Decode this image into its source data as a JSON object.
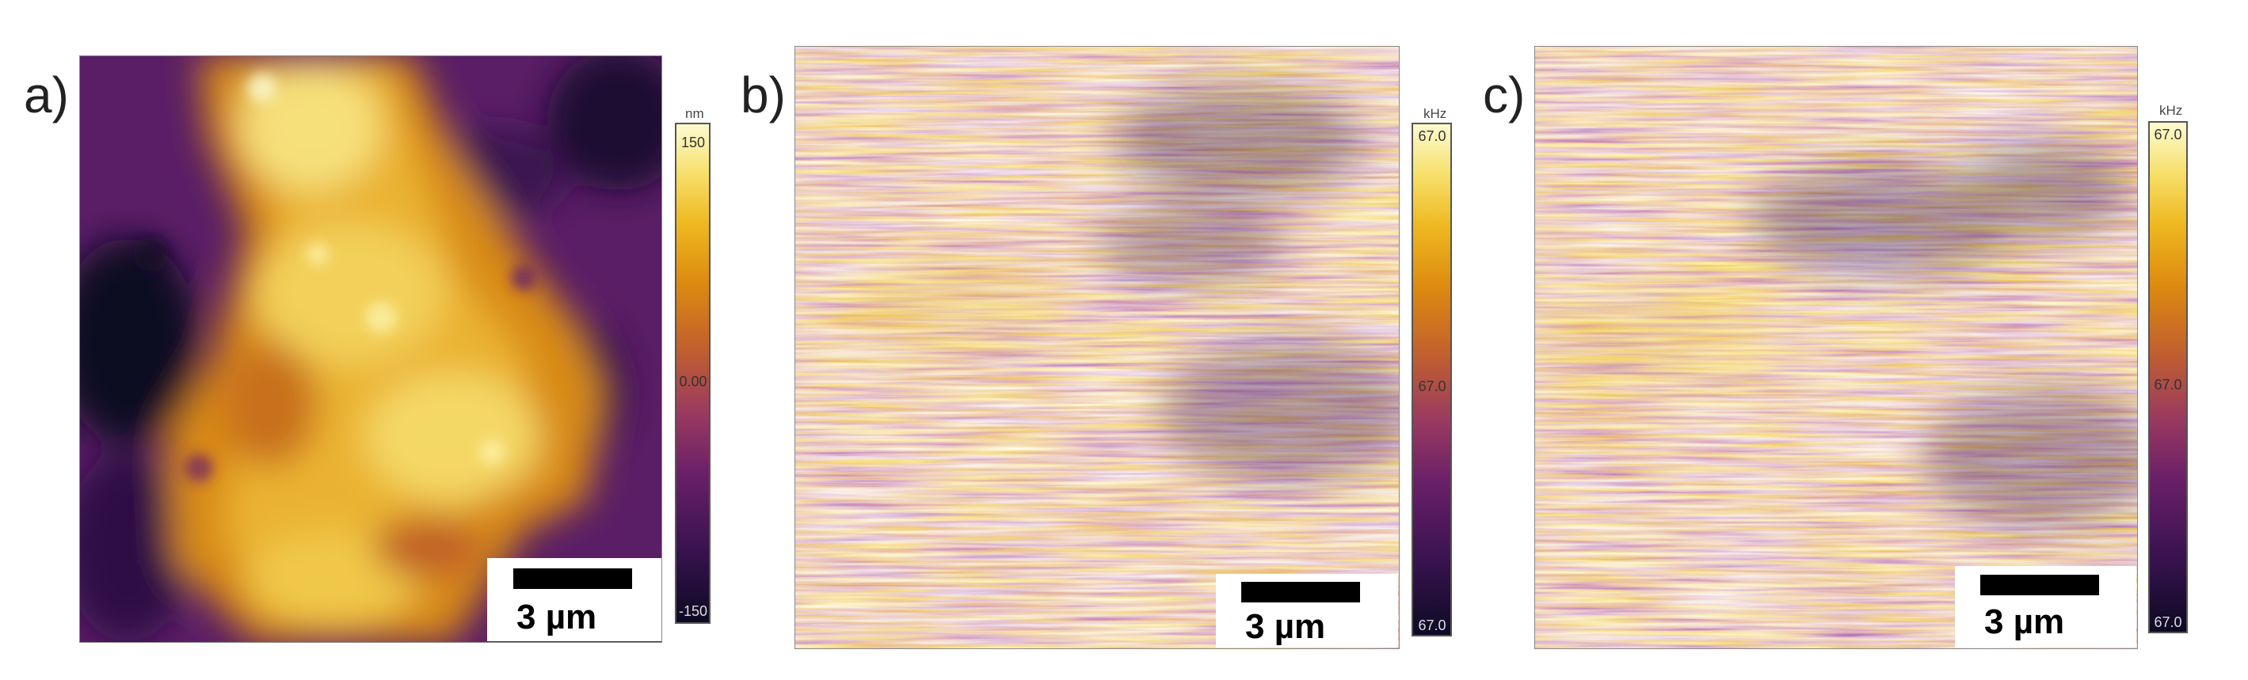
{
  "panels": [
    {
      "label": "a)",
      "scale_bar_label": "3 µm",
      "colorbar": {
        "unit": "nm",
        "ticks": [
          "150",
          "0.00",
          "-150"
        ]
      },
      "image": "afm-topography"
    },
    {
      "label": "b)",
      "scale_bar_label": "3 µm",
      "colorbar": {
        "unit": "kHz",
        "ticks": [
          "67.0",
          "67.0",
          "67.0"
        ]
      },
      "image": "frequency-map-streaky"
    },
    {
      "label": "c)",
      "scale_bar_label": "3 µm",
      "colorbar": {
        "unit": "kHz",
        "ticks": [
          "67.0",
          "67.0",
          "67.0"
        ]
      },
      "image": "frequency-map-streaky"
    }
  ],
  "colormap": [
    "#0d0a24",
    "#3a1350",
    "#6a2068",
    "#9a3a60",
    "#c2602e",
    "#dc8a10",
    "#eeb820",
    "#f7df6a",
    "#fcfbd0"
  ]
}
